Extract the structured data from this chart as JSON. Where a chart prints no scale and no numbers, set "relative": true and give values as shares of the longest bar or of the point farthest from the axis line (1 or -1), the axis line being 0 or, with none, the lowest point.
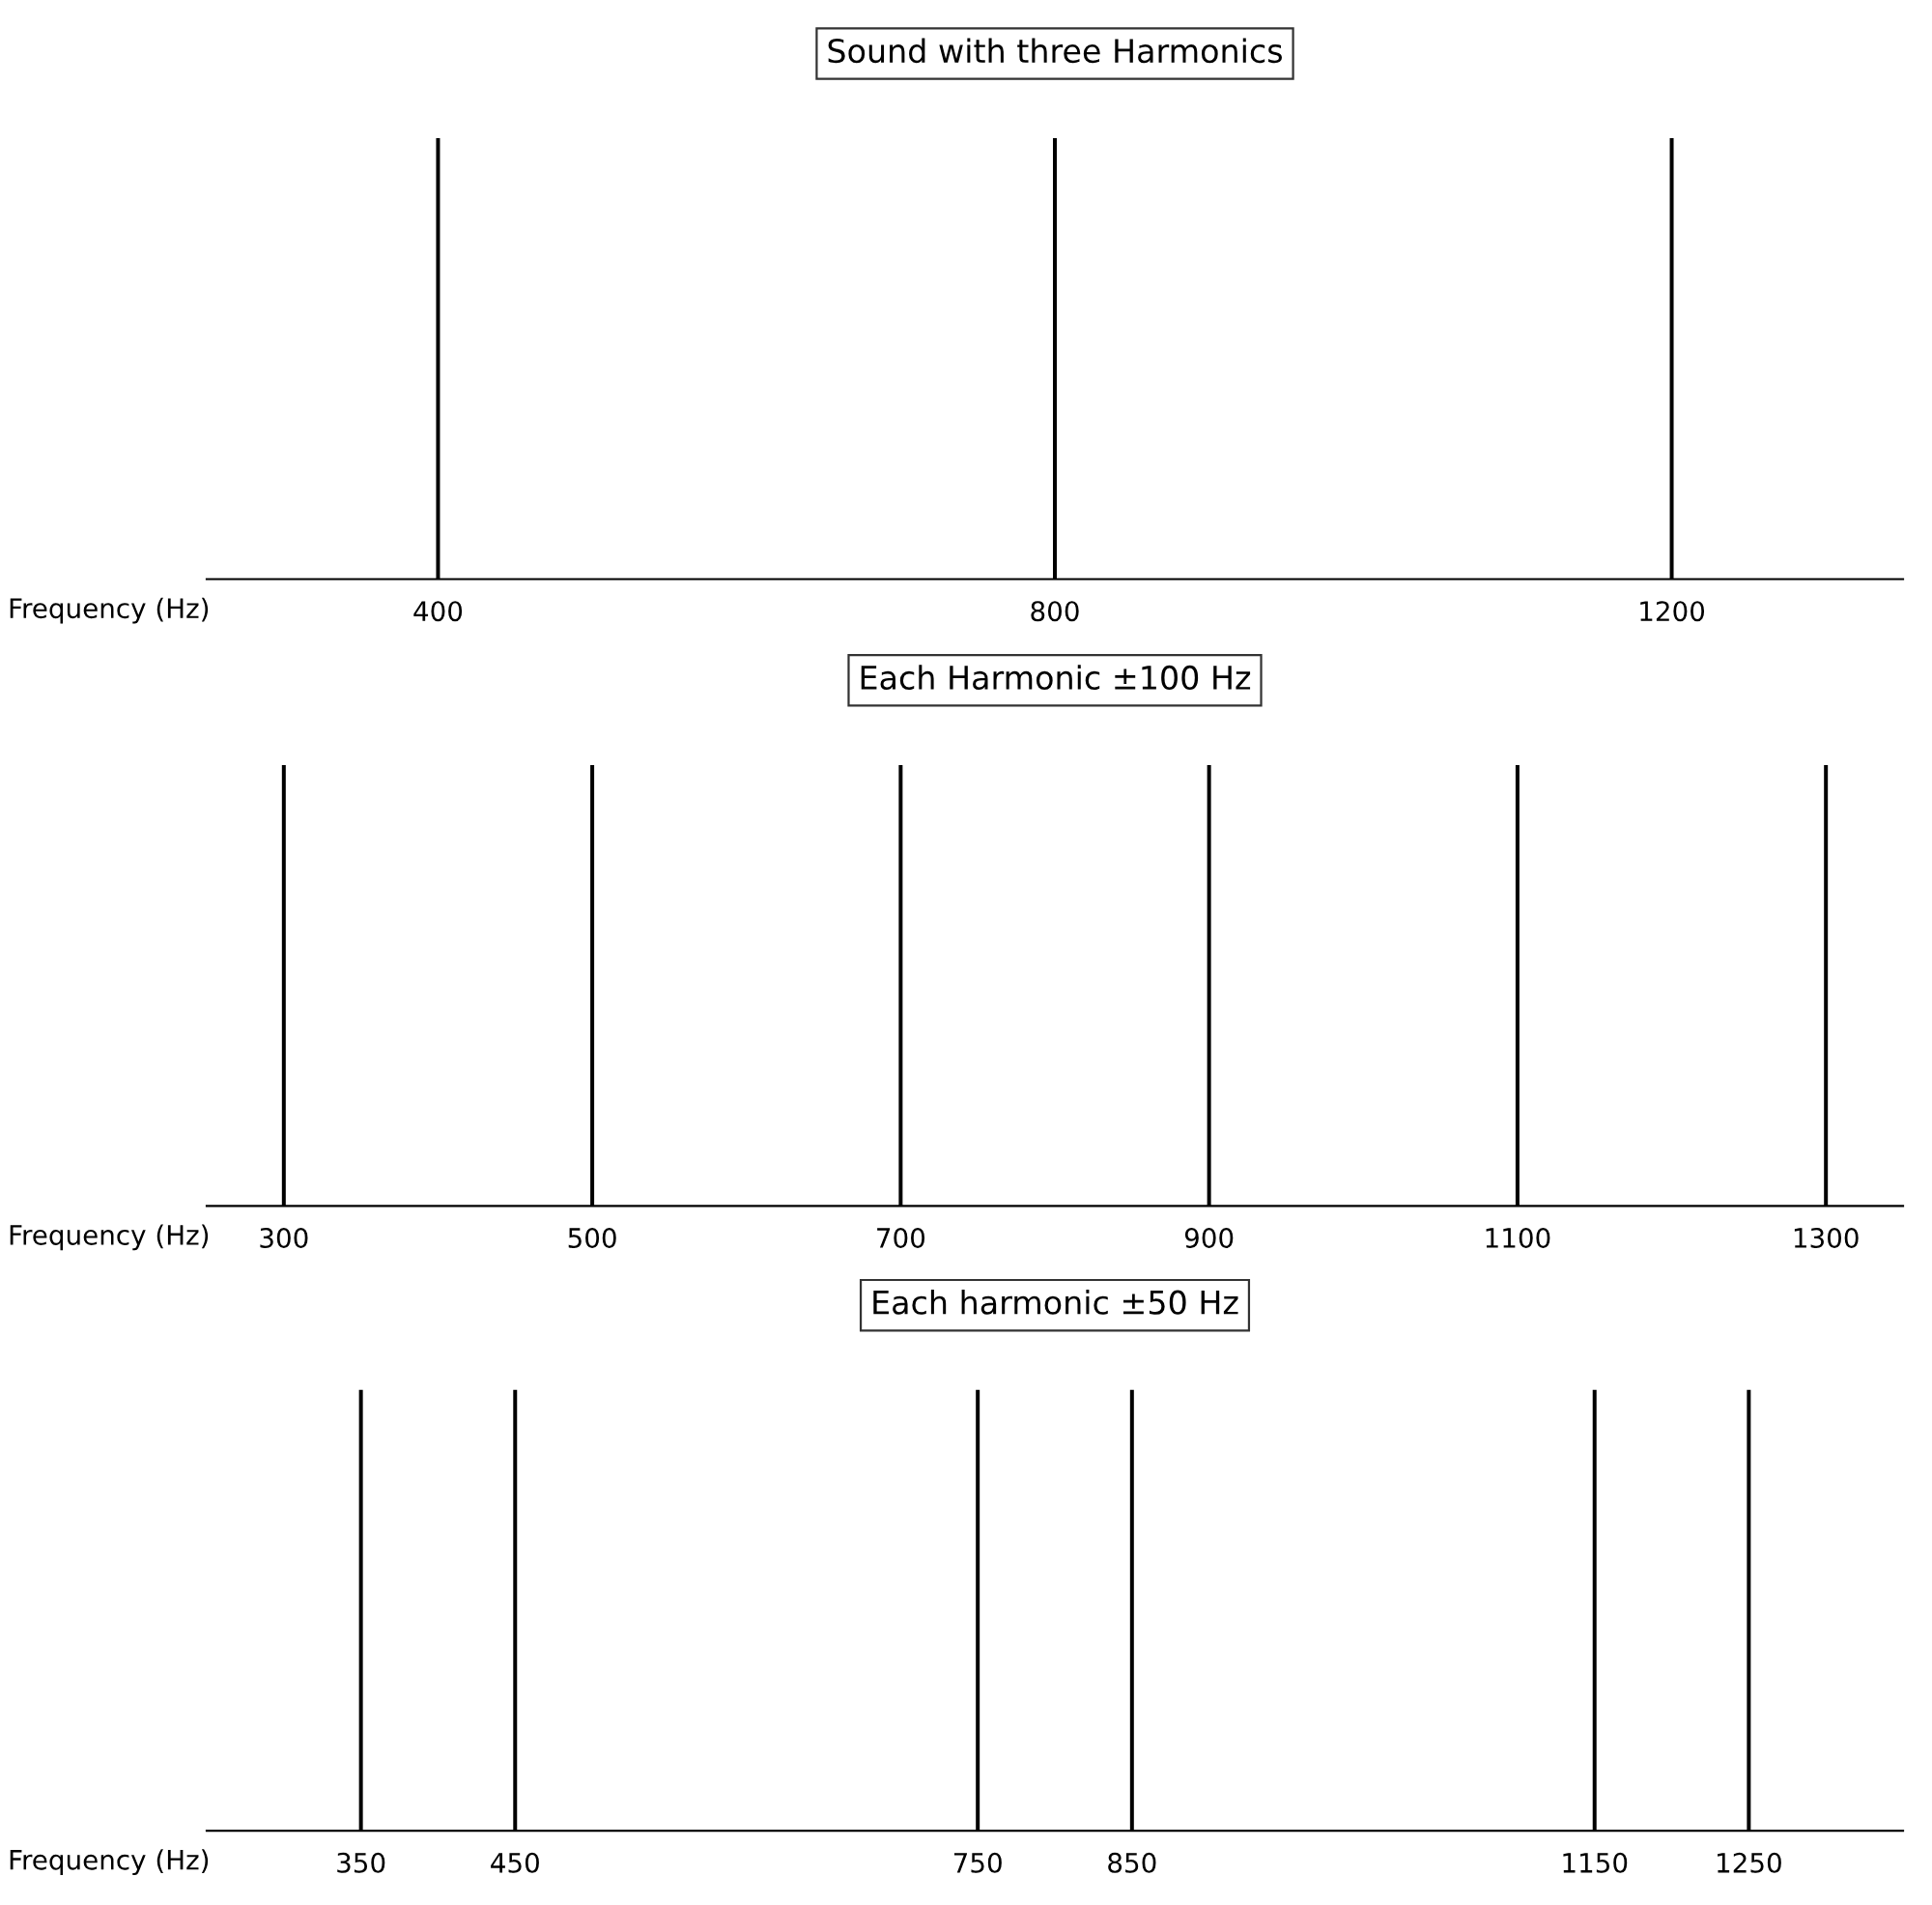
{
  "chart_data": [
    {
      "type": "bar",
      "title": "Sound with three Harmonics",
      "xlabel": "Frequency (Hz)",
      "relative": true,
      "x": [
        400,
        800,
        1200
      ],
      "values": [
        1,
        1,
        1
      ],
      "color": "#000000",
      "xlim": [
        250,
        1350
      ],
      "xticks": [
        400,
        800,
        1200
      ],
      "tick_labels": "x",
      "grid": false,
      "legend": false
    },
    {
      "type": "bar",
      "title": "Each Harmonic ±100 Hz",
      "xlabel": "Frequency (Hz)",
      "relative": true,
      "x": [
        300,
        500,
        700,
        900,
        1100,
        1300
      ],
      "values": [
        1,
        1,
        1,
        1,
        1,
        1
      ],
      "color": "#000000",
      "xlim": [
        250,
        1350
      ],
      "xticks": [
        300,
        500,
        700,
        900,
        1100,
        1300
      ],
      "tick_labels": "x",
      "grid": false,
      "legend": false
    },
    {
      "type": "bar",
      "title": "Each harmonic ±50 Hz",
      "xlabel": "Frequency (Hz)",
      "relative": true,
      "x": [
        350,
        450,
        750,
        850,
        1150,
        1250
      ],
      "values": [
        1,
        1,
        1,
        1,
        1,
        1
      ],
      "color": "#000000",
      "xlim": [
        250,
        1350
      ],
      "xticks": [
        350,
        450,
        750,
        850,
        1150,
        1250
      ],
      "tick_labels": "x",
      "grid": false,
      "legend": false
    }
  ]
}
